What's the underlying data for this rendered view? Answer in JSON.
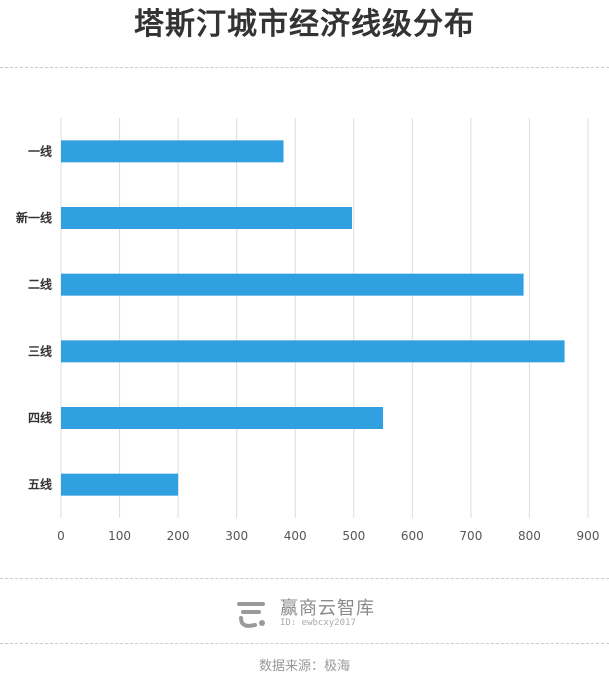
{
  "chart_data": {
    "type": "bar",
    "orientation": "horizontal",
    "title": "塔斯汀城市经济线级分布",
    "categories": [
      "一线",
      "新一线",
      "二线",
      "三线",
      "四线",
      "五线"
    ],
    "values": [
      380,
      497,
      790,
      860,
      550,
      200
    ],
    "xlim": [
      0,
      900
    ],
    "xticks": [
      "0",
      "100",
      "200",
      "300",
      "400",
      "500",
      "600",
      "700",
      "800",
      "900"
    ],
    "grid": true,
    "bar_color": "#31a0e0"
  },
  "footer": {
    "brand": "赢商云智库",
    "brand_id": "ID: ewbcxy2017",
    "source": "数据来源：极海"
  }
}
